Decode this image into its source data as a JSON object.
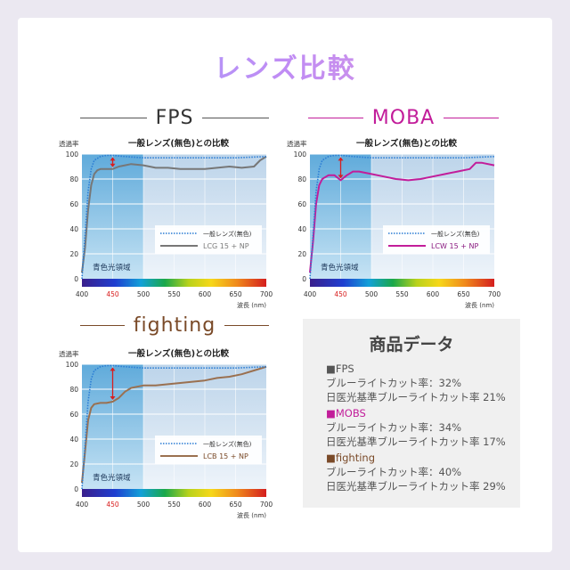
{
  "title": "レンズ比較",
  "sections": [
    {
      "name": "FPS",
      "color": "#333333",
      "line_color": "#777777",
      "legend": {
        "normal": "一般レンズ(無色)",
        "product": "LCG 15 + NP"
      },
      "legend_color": "#7b7b7b"
    },
    {
      "name": "MOBA",
      "color": "#c21d9a",
      "line_color": "#c21d9a",
      "legend": {
        "normal": "一般レンズ(無色)",
        "product": "LCW 15 + NP"
      },
      "legend_color": "#8a1a80"
    },
    {
      "name": "fighting",
      "color": "#7a4a28",
      "line_color": "#9a7050",
      "legend": {
        "normal": "一般レンズ(無色)",
        "product": "LCB 15 + NP"
      },
      "legend_color": "#7a4a28"
    }
  ],
  "chart_common": {
    "title": "一般レンズ(無色)との比較",
    "ylabel": "透過率",
    "xlabel": "波長 (nm)",
    "region_label": "青色光領域",
    "x_ticks": [
      "400",
      "450",
      "500",
      "550",
      "600",
      "650",
      "700"
    ],
    "y_ticks": [
      "0",
      "20",
      "40",
      "60",
      "80",
      "100"
    ],
    "highlight_tick": "450"
  },
  "chart_data": [
    {
      "type": "line",
      "xlabel": "波長 (nm)",
      "ylabel": "透過率",
      "xlim": [
        400,
        700
      ],
      "ylim": [
        0,
        100
      ],
      "series": [
        {
          "name": "一般レンズ(無色)",
          "x": [
            400,
            405,
            410,
            415,
            420,
            430,
            440,
            450,
            470,
            500,
            550,
            600,
            650,
            700
          ],
          "y": [
            0,
            35,
            70,
            88,
            95,
            98,
            99,
            99,
            98,
            97,
            97,
            97,
            97,
            98
          ]
        },
        {
          "name": "LCG 15 + NP",
          "x": [
            400,
            405,
            410,
            415,
            420,
            425,
            430,
            440,
            450,
            460,
            470,
            480,
            500,
            520,
            540,
            560,
            580,
            600,
            620,
            640,
            660,
            680,
            690,
            700
          ],
          "y": [
            5,
            25,
            55,
            75,
            84,
            87,
            88,
            88,
            88,
            90,
            91,
            92,
            91,
            89,
            89,
            88,
            88,
            88,
            89,
            90,
            89,
            90,
            95,
            98
          ]
        }
      ]
    },
    {
      "type": "line",
      "xlabel": "波長 (nm)",
      "ylabel": "透過率",
      "xlim": [
        400,
        700
      ],
      "ylim": [
        0,
        100
      ],
      "series": [
        {
          "name": "一般レンズ(無色)",
          "x": [
            400,
            405,
            410,
            415,
            420,
            430,
            440,
            450,
            470,
            500,
            550,
            600,
            650,
            700
          ],
          "y": [
            0,
            35,
            70,
            88,
            95,
            98,
            99,
            99,
            98,
            97,
            97,
            97,
            97,
            98
          ]
        },
        {
          "name": "LCW 15 + NP",
          "x": [
            400,
            405,
            410,
            415,
            420,
            430,
            440,
            450,
            455,
            460,
            470,
            480,
            500,
            520,
            540,
            560,
            580,
            600,
            620,
            640,
            660,
            670,
            680,
            700
          ],
          "y": [
            5,
            30,
            60,
            75,
            80,
            83,
            83,
            79,
            81,
            83,
            86,
            86,
            84,
            82,
            80,
            79,
            80,
            82,
            84,
            86,
            88,
            93,
            93,
            91
          ]
        }
      ]
    },
    {
      "type": "line",
      "xlabel": "波長 (nm)",
      "ylabel": "透過率",
      "xlim": [
        400,
        700
      ],
      "ylim": [
        0,
        100
      ],
      "series": [
        {
          "name": "一般レンズ(無色)",
          "x": [
            400,
            405,
            410,
            415,
            420,
            430,
            440,
            450,
            470,
            500,
            550,
            600,
            650,
            700
          ],
          "y": [
            0,
            35,
            70,
            88,
            95,
            98,
            99,
            99,
            98,
            97,
            97,
            97,
            97,
            98
          ]
        },
        {
          "name": "LCB 15 + NP",
          "x": [
            400,
            405,
            410,
            415,
            420,
            430,
            440,
            450,
            460,
            470,
            480,
            490,
            500,
            520,
            540,
            560,
            580,
            600,
            620,
            640,
            660,
            680,
            700
          ],
          "y": [
            5,
            30,
            55,
            65,
            68,
            69,
            69,
            70,
            73,
            78,
            81,
            82,
            83,
            83,
            84,
            85,
            86,
            87,
            89,
            90,
            92,
            95,
            98
          ]
        }
      ]
    }
  ],
  "data_box": {
    "title": "商品データ",
    "items": [
      {
        "label": "■FPS",
        "color": "#555555",
        "line1": "ブルーライトカット率：32%",
        "line2": "日医光基準ブルーライトカット率 21%"
      },
      {
        "label": "■MOBS",
        "color": "#c21d9a",
        "line1": "ブルーライトカット率：34%",
        "line2": "日医光基準ブルーライトカット率 17%"
      },
      {
        "label": "■fighting",
        "color": "#7a4a28",
        "line1": "ブルーライトカット率：40%",
        "line2": "日医光基準ブルーライトカット率 29%"
      }
    ]
  }
}
